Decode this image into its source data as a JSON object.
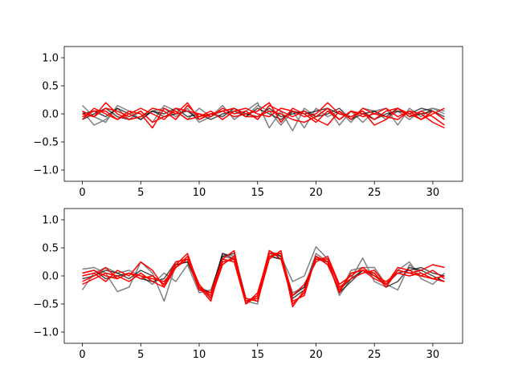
{
  "chart_data": [
    {
      "type": "line",
      "title": "",
      "xlabel": "",
      "ylabel": "",
      "xlim": [
        -1.55,
        32.55
      ],
      "ylim": [
        -1.2,
        1.2
      ],
      "xticks": [
        0,
        5,
        10,
        15,
        20,
        25,
        30
      ],
      "yticks": [
        -1.0,
        -0.5,
        0.0,
        0.5,
        1.0
      ],
      "grid": false,
      "series": [
        {
          "color": "#808080",
          "values": [
            0.15,
            -0.05,
            -0.15,
            0.15,
            0.05,
            -0.1,
            0.05,
            0.1,
            -0.05,
            0.1,
            -0.15,
            -0.05,
            0.15,
            -0.1,
            0.05,
            0.2,
            -0.25,
            0.05,
            -0.3,
            0.1,
            -0.05,
            0.1,
            -0.2,
            0.05,
            -0.15,
            0.05,
            0.1,
            -0.2,
            0.1,
            -0.05,
            0.1,
            0.05
          ]
        },
        {
          "color": "#808080",
          "values": [
            0.05,
            -0.2,
            -0.1,
            0.1,
            -0.1,
            0.05,
            -0.15,
            0.15,
            0.05,
            -0.1,
            0.1,
            -0.05,
            0.05,
            0.1,
            -0.05,
            0.15,
            0.05,
            -0.2,
            0.05,
            -0.25,
            0.1,
            -0.05,
            0.05,
            -0.15,
            0.1,
            0.05,
            -0.1,
            0.05,
            -0.1,
            0.05,
            0.1,
            0.0
          ]
        },
        {
          "color": "#000000",
          "values": [
            -0.1,
            0.0,
            0.1,
            -0.05,
            -0.1,
            -0.05,
            0.05,
            0.0,
            0.1,
            -0.05,
            0.0,
            -0.1,
            0.0,
            0.05,
            -0.05,
            0.1,
            0.0,
            -0.1,
            0.05,
            0.0,
            0.05,
            0.1,
            0.0,
            -0.05,
            0.05,
            -0.1,
            0.0,
            0.05,
            0.0,
            0.1,
            0.05,
            -0.05
          ]
        },
        {
          "color": "#000000",
          "values": [
            0.0,
            0.05,
            -0.05,
            0.1,
            0.0,
            -0.1,
            0.05,
            -0.05,
            0.0,
            0.05,
            -0.1,
            0.0,
            -0.05,
            0.1,
            0.0,
            -0.05,
            0.1,
            -0.05,
            0.0,
            0.05,
            -0.05,
            0.0,
            0.1,
            -0.1,
            0.0,
            0.05,
            -0.05,
            0.1,
            -0.05,
            0.0,
            0.05,
            -0.1
          ]
        },
        {
          "color": "#ff0000",
          "values": [
            0.05,
            -0.05,
            0.2,
            0.0,
            -0.1,
            -0.05,
            0.1,
            0.05,
            -0.1,
            0.15,
            -0.05,
            0.05,
            -0.1,
            0.05,
            0.1,
            0.0,
            -0.05,
            0.1,
            0.05,
            -0.05,
            0.0,
            0.2,
            0.0,
            -0.05,
            0.05,
            -0.2,
            -0.1,
            0.1,
            -0.05,
            0.05,
            -0.05,
            -0.2
          ]
        },
        {
          "color": "#ff0000",
          "values": [
            -0.1,
            0.1,
            0.0,
            -0.1,
            0.05,
            0.0,
            -0.25,
            0.1,
            0.0,
            0.2,
            -0.1,
            0.0,
            0.05,
            -0.05,
            0.0,
            0.05,
            0.2,
            -0.15,
            0.1,
            0.0,
            -0.15,
            0.05,
            -0.1,
            0.05,
            0.0,
            -0.1,
            0.05,
            0.1,
            0.0,
            -0.1,
            0.05,
            -0.1
          ]
        },
        {
          "color": "#ff0000",
          "values": [
            0.0,
            -0.05,
            0.1,
            0.05,
            -0.05,
            0.05,
            -0.15,
            -0.05,
            0.05,
            -0.1,
            -0.05,
            0.0,
            0.05,
            0.1,
            -0.05,
            -0.05,
            0.05,
            0.0,
            -0.1,
            -0.15,
            -0.05,
            0.1,
            -0.1,
            0.05,
            -0.05,
            0.0,
            0.1,
            -0.05,
            0.05,
            -0.1,
            0.0,
            0.1
          ]
        },
        {
          "color": "#ff0000",
          "values": [
            -0.05,
            0.05,
            0.05,
            -0.1,
            0.0,
            0.1,
            0.0,
            -0.1,
            0.1,
            0.05,
            0.0,
            -0.05,
            0.1,
            0.0,
            0.05,
            -0.1,
            0.15,
            0.05,
            -0.05,
            0.05,
            -0.1,
            -0.2,
            0.05,
            -0.1,
            0.1,
            0.0,
            -0.05,
            -0.1,
            0.05,
            0.0,
            -0.15,
            -0.25
          ]
        }
      ]
    },
    {
      "type": "line",
      "title": "",
      "xlabel": "",
      "ylabel": "",
      "xlim": [
        -1.55,
        32.55
      ],
      "ylim": [
        -1.2,
        1.2
      ],
      "xticks": [
        0,
        5,
        10,
        15,
        20,
        25,
        30
      ],
      "yticks": [
        -1.0,
        -0.5,
        0.0,
        0.5,
        1.0
      ],
      "grid": false,
      "series": [
        {
          "color": "#808080",
          "values": [
            0.12,
            0.15,
            0.05,
            -0.28,
            -0.2,
            0.25,
            0.05,
            -0.45,
            0.2,
            0.25,
            -0.2,
            -0.4,
            0.4,
            0.35,
            -0.45,
            -0.5,
            0.45,
            0.35,
            -0.1,
            0.0,
            0.52,
            0.3,
            -0.35,
            -0.05,
            0.32,
            -0.1,
            -0.2,
            0.1,
            0.25,
            -0.05,
            -0.15,
            0.05
          ]
        },
        {
          "color": "#808080",
          "values": [
            -0.25,
            0.05,
            0.15,
            0.05,
            0.1,
            0.0,
            -0.15,
            0.05,
            -0.1,
            0.2,
            -0.3,
            -0.25,
            0.35,
            0.3,
            -0.45,
            -0.35,
            0.35,
            0.3,
            -0.3,
            -0.2,
            0.4,
            0.25,
            -0.3,
            0.1,
            0.15,
            0.15,
            -0.15,
            -0.25,
            0.2,
            0.05,
            -0.05,
            -0.1
          ]
        },
        {
          "color": "#000000",
          "values": [
            0.05,
            0.1,
            -0.05,
            0.0,
            0.05,
            -0.05,
            -0.1,
            -0.05,
            0.25,
            0.3,
            -0.25,
            -0.3,
            0.4,
            0.3,
            -0.45,
            -0.4,
            0.35,
            0.3,
            -0.35,
            -0.2,
            0.3,
            0.25,
            -0.3,
            -0.1,
            0.1,
            0.05,
            -0.2,
            -0.1,
            0.15,
            0.1,
            0.0,
            -0.1
          ]
        },
        {
          "color": "#000000",
          "values": [
            -0.05,
            0.0,
            0.1,
            0.05,
            -0.05,
            0.1,
            0.0,
            -0.15,
            0.2,
            0.25,
            -0.2,
            -0.3,
            0.35,
            0.4,
            -0.4,
            -0.45,
            0.4,
            0.35,
            -0.4,
            -0.25,
            0.35,
            0.2,
            -0.25,
            -0.05,
            0.1,
            0.0,
            -0.15,
            0.05,
            0.1,
            0.15,
            0.05,
            0.0
          ]
        },
        {
          "color": "#ff0000",
          "values": [
            0.0,
            0.05,
            -0.1,
            0.1,
            0.0,
            0.25,
            0.1,
            -0.2,
            0.15,
            0.3,
            -0.2,
            -0.45,
            0.3,
            0.45,
            -0.5,
            -0.3,
            0.4,
            0.4,
            -0.5,
            -0.3,
            0.35,
            0.25,
            -0.3,
            0.05,
            0.1,
            -0.05,
            -0.15,
            0.1,
            0.05,
            0.1,
            0.2,
            0.15
          ]
        },
        {
          "color": "#ff0000",
          "values": [
            -0.15,
            -0.05,
            0.05,
            0.0,
            -0.1,
            0.05,
            -0.1,
            -0.2,
            0.2,
            0.4,
            -0.2,
            -0.35,
            0.25,
            0.3,
            -0.4,
            -0.45,
            0.3,
            0.45,
            -0.55,
            -0.25,
            0.3,
            0.3,
            -0.2,
            -0.05,
            0.05,
            0.1,
            -0.15,
            0.15,
            0.1,
            0.0,
            0.1,
            -0.05
          ]
        },
        {
          "color": "#ff0000",
          "values": [
            0.05,
            0.1,
            0.0,
            -0.05,
            0.05,
            0.0,
            -0.05,
            -0.1,
            0.15,
            0.35,
            -0.15,
            -0.4,
            0.2,
            0.35,
            -0.45,
            -0.4,
            0.35,
            0.4,
            -0.35,
            -0.15,
            0.25,
            0.35,
            -0.15,
            0.0,
            0.15,
            0.0,
            -0.1,
            0.05,
            0.0,
            0.05,
            -0.05,
            -0.1
          ]
        },
        {
          "color": "#ff0000",
          "values": [
            -0.1,
            0.0,
            0.15,
            -0.05,
            0.05,
            -0.05,
            0.0,
            -0.15,
            0.25,
            0.3,
            -0.25,
            -0.3,
            0.3,
            0.25,
            -0.5,
            -0.35,
            0.45,
            0.3,
            -0.45,
            -0.35,
            0.35,
            0.2,
            -0.25,
            0.05,
            0.1,
            0.05,
            -0.2,
            0.1,
            0.05,
            0.0,
            -0.05,
            0.0
          ]
        }
      ]
    }
  ]
}
